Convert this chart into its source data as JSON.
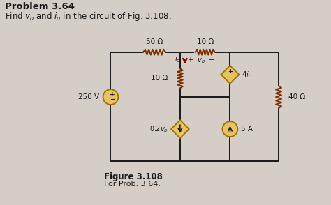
{
  "title_bold": "Problem 3.64",
  "subtitle": "Find $v_o$ and $i_o$ in the circuit of Fig. 3.108.",
  "fig_label": "Figure 3.108",
  "fig_sublabel": "For Prob. 3.64.",
  "bg_color": "#d4cec6",
  "wire_color": "#1a1a1a",
  "resistor_color": "#7B3000",
  "source_fill": "#e8c460",
  "source_edge": "#9B7000",
  "arrow_color": "#990000",
  "text_color": "#1a1a1a",
  "res_amp": 4,
  "res_segs": 6
}
